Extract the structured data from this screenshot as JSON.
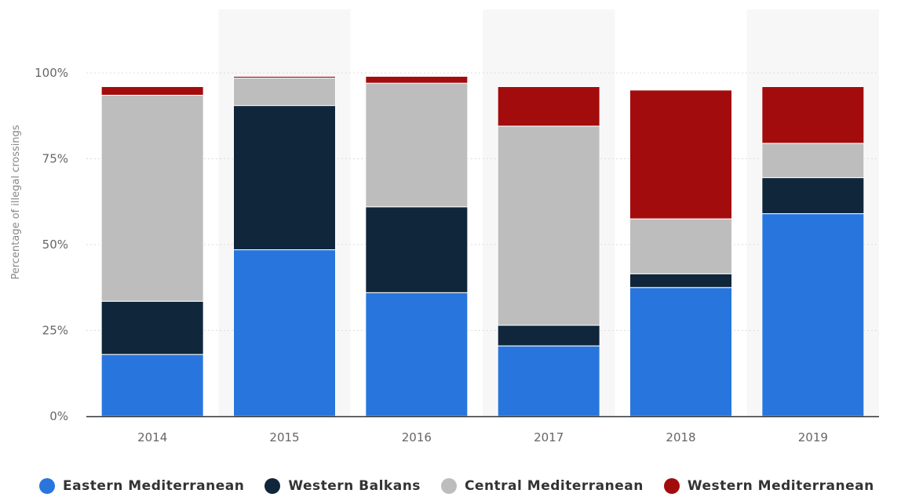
{
  "chart_data": {
    "type": "bar",
    "stacked": true,
    "categories": [
      "2014",
      "2015",
      "2016",
      "2017",
      "2018",
      "2019"
    ],
    "series": [
      {
        "name": "Eastern Mediterranean",
        "color": "#2876dd",
        "values": [
          18,
          48.5,
          36,
          20.5,
          37.5,
          59
        ]
      },
      {
        "name": "Western Balkans",
        "color": "#10263b",
        "values": [
          15.5,
          42,
          25,
          6,
          4,
          10.5
        ]
      },
      {
        "name": "Central Mediterranean",
        "color": "#bdbdbd",
        "values": [
          60,
          8,
          36,
          58,
          16,
          10
        ]
      },
      {
        "name": "Western Mediterranean",
        "color": "#a30c0c",
        "values": [
          2.5,
          0.5,
          2,
          11.5,
          37.5,
          16.5
        ]
      }
    ],
    "ylabel": "Percentage of illegal crossings",
    "xlabel": "",
    "ylim": [
      0,
      100
    ],
    "yticks": [
      "0%",
      "25%",
      "50%",
      "75%",
      "100%"
    ],
    "grid": true,
    "legend_position": "bottom"
  }
}
